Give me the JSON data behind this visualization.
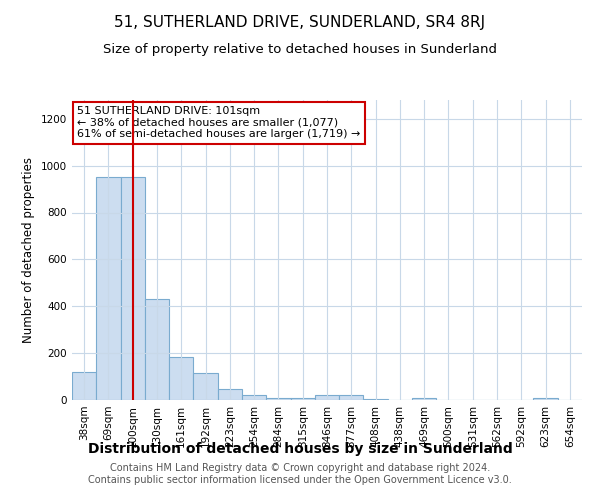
{
  "title": "51, SUTHERLAND DRIVE, SUNDERLAND, SR4 8RJ",
  "subtitle": "Size of property relative to detached houses in Sunderland",
  "xlabel": "Distribution of detached houses by size in Sunderland",
  "ylabel": "Number of detached properties",
  "categories": [
    "38sqm",
    "69sqm",
    "100sqm",
    "130sqm",
    "161sqm",
    "192sqm",
    "223sqm",
    "254sqm",
    "284sqm",
    "315sqm",
    "346sqm",
    "377sqm",
    "408sqm",
    "438sqm",
    "469sqm",
    "500sqm",
    "531sqm",
    "562sqm",
    "592sqm",
    "623sqm",
    "654sqm"
  ],
  "values": [
    120,
    950,
    950,
    430,
    185,
    115,
    48,
    20,
    10,
    8,
    20,
    20,
    3,
    0,
    10,
    0,
    0,
    0,
    0,
    10,
    0
  ],
  "bar_color": "#ccddf0",
  "bar_edge_color": "#7aabcf",
  "highlight_bar_index": 2,
  "highlight_line_color": "#cc0000",
  "annotation_text": "51 SUTHERLAND DRIVE: 101sqm\n← 38% of detached houses are smaller (1,077)\n61% of semi-detached houses are larger (1,719) →",
  "annotation_box_facecolor": "#ffffff",
  "annotation_box_edgecolor": "#cc0000",
  "ylim": [
    0,
    1280
  ],
  "yticks": [
    0,
    200,
    400,
    600,
    800,
    1000,
    1200
  ],
  "footer": "Contains HM Land Registry data © Crown copyright and database right 2024.\nContains public sector information licensed under the Open Government Licence v3.0.",
  "background_color": "#ffffff",
  "plot_background_color": "#ffffff",
  "grid_color": "#c8d8e8",
  "title_fontsize": 11,
  "subtitle_fontsize": 9.5,
  "xlabel_fontsize": 10,
  "ylabel_fontsize": 8.5,
  "tick_fontsize": 7.5,
  "footer_fontsize": 7,
  "annotation_fontsize": 8
}
